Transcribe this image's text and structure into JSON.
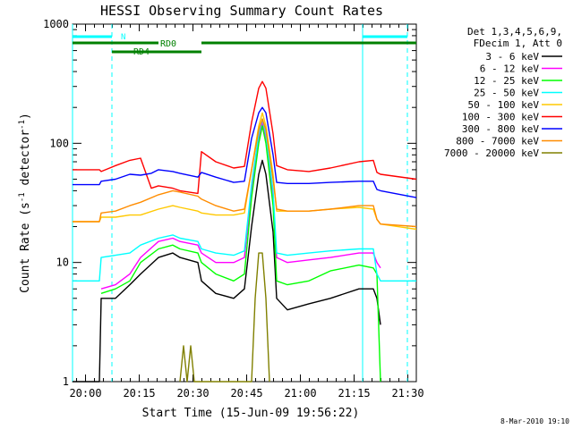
{
  "chart_data": {
    "type": "line",
    "title": "HESSI Observing Summary Count Rates",
    "xlabel": "Start Time (15-Jun-09 19:56:22)",
    "ylabel_main": "Count Rate (s",
    "ylabel_sup1": "-1",
    "ylabel_mid": " detector",
    "ylabel_sup2": "-1",
    "ylabel_end": ")",
    "x_range_minutes": [
      0,
      96
    ],
    "x_ticks": [
      {
        "m": 3.63,
        "label": "20:00"
      },
      {
        "m": 18.63,
        "label": "20:15"
      },
      {
        "m": 33.63,
        "label": "20:30"
      },
      {
        "m": 48.63,
        "label": "20:45"
      },
      {
        "m": 63.63,
        "label": "21:00"
      },
      {
        "m": 78.63,
        "label": "21:15"
      },
      {
        "m": 93.63,
        "label": "21:30"
      }
    ],
    "y_scale": "log",
    "y_range": [
      1,
      1000
    ],
    "y_ticks": [
      {
        "v": 1,
        "label": "1"
      },
      {
        "v": 10,
        "label": "10"
      },
      {
        "v": 100,
        "label": "100"
      },
      {
        "v": 1000,
        "label": "1000"
      }
    ],
    "legend_header": [
      "Det 1,3,4,5,6,9,",
      "FDecim 1, Att 0"
    ],
    "legend_placement": "right",
    "series": [
      {
        "name": "3 - 6 keV",
        "color": "#000000",
        "values": [
          [
            0,
            1
          ],
          [
            7.5,
            1
          ],
          [
            8,
            5
          ],
          [
            12,
            5
          ],
          [
            16,
            6.5
          ],
          [
            19,
            8
          ],
          [
            24,
            11
          ],
          [
            28,
            12
          ],
          [
            30,
            11
          ],
          [
            35,
            10
          ],
          [
            36,
            7
          ],
          [
            40,
            5.5
          ],
          [
            45,
            5
          ],
          [
            48,
            6
          ],
          [
            50,
            20
          ],
          [
            52,
            55
          ],
          [
            53,
            72
          ],
          [
            54,
            55
          ],
          [
            56,
            18
          ],
          [
            57,
            5
          ],
          [
            60,
            4
          ],
          [
            66,
            4.5
          ],
          [
            72,
            5
          ],
          [
            80,
            6
          ],
          [
            84,
            6
          ],
          [
            85,
            5
          ],
          [
            86,
            3
          ]
        ]
      },
      {
        "name": "6 - 12 keV",
        "color": "#ff00ff",
        "values": [
          [
            8,
            6
          ],
          [
            12,
            6.5
          ],
          [
            16,
            8
          ],
          [
            19,
            11
          ],
          [
            24,
            15
          ],
          [
            28,
            16
          ],
          [
            30,
            15
          ],
          [
            35,
            14
          ],
          [
            36,
            12
          ],
          [
            40,
            10
          ],
          [
            45,
            10
          ],
          [
            48,
            11
          ],
          [
            50,
            40
          ],
          [
            52,
            110
          ],
          [
            53,
            150
          ],
          [
            54,
            110
          ],
          [
            56,
            35
          ],
          [
            57,
            11
          ],
          [
            60,
            10
          ],
          [
            66,
            10.5
          ],
          [
            72,
            11
          ],
          [
            80,
            12
          ],
          [
            84,
            12
          ],
          [
            85,
            10
          ],
          [
            86,
            9
          ]
        ]
      },
      {
        "name": "12 - 25 keV",
        "color": "#00ff00",
        "values": [
          [
            8,
            5.5
          ],
          [
            12,
            6
          ],
          [
            16,
            7
          ],
          [
            19,
            10
          ],
          [
            24,
            13
          ],
          [
            28,
            14
          ],
          [
            30,
            13
          ],
          [
            35,
            12
          ],
          [
            36,
            10
          ],
          [
            40,
            8
          ],
          [
            45,
            7
          ],
          [
            48,
            8
          ],
          [
            50,
            35
          ],
          [
            52,
            100
          ],
          [
            53,
            140
          ],
          [
            54,
            100
          ],
          [
            56,
            30
          ],
          [
            57,
            7
          ],
          [
            60,
            6.5
          ],
          [
            66,
            7
          ],
          [
            72,
            8.5
          ],
          [
            80,
            9.5
          ],
          [
            84,
            9
          ],
          [
            85,
            8
          ],
          [
            86,
            1
          ]
        ]
      },
      {
        "name": "25 - 50 keV",
        "color": "#00ffff",
        "values": [
          [
            0,
            7
          ],
          [
            7.5,
            7
          ],
          [
            8,
            11
          ],
          [
            12,
            11.5
          ],
          [
            16,
            12
          ],
          [
            19,
            14
          ],
          [
            24,
            16
          ],
          [
            28,
            17
          ],
          [
            30,
            16
          ],
          [
            35,
            15
          ],
          [
            36,
            13
          ],
          [
            40,
            12
          ],
          [
            45,
            11.5
          ],
          [
            48,
            12.5
          ],
          [
            50,
            45
          ],
          [
            52,
            120
          ],
          [
            53,
            160
          ],
          [
            54,
            120
          ],
          [
            56,
            40
          ],
          [
            57,
            12
          ],
          [
            60,
            11.5
          ],
          [
            66,
            12
          ],
          [
            72,
            12.5
          ],
          [
            80,
            13
          ],
          [
            84,
            13
          ],
          [
            85,
            8
          ],
          [
            86,
            7
          ],
          [
            96,
            7
          ]
        ]
      },
      {
        "name": "50 - 100 keV",
        "color": "#ffc800",
        "values": [
          [
            0,
            22
          ],
          [
            7.5,
            22
          ],
          [
            8,
            24
          ],
          [
            12,
            24
          ],
          [
            16,
            25
          ],
          [
            19,
            25
          ],
          [
            24,
            28
          ],
          [
            28,
            30
          ],
          [
            30,
            29
          ],
          [
            35,
            27
          ],
          [
            36,
            26
          ],
          [
            40,
            25
          ],
          [
            45,
            25
          ],
          [
            48,
            26
          ],
          [
            50,
            60
          ],
          [
            52,
            140
          ],
          [
            53,
            180
          ],
          [
            54,
            140
          ],
          [
            56,
            55
          ],
          [
            57,
            27
          ],
          [
            60,
            27
          ],
          [
            66,
            27
          ],
          [
            72,
            28
          ],
          [
            80,
            29
          ],
          [
            84,
            28
          ],
          [
            85,
            23
          ],
          [
            86,
            21
          ],
          [
            96,
            19
          ]
        ]
      },
      {
        "name": "100 - 300 keV",
        "color": "#ff0000",
        "values": [
          [
            0,
            60
          ],
          [
            7.5,
            60
          ],
          [
            8,
            58
          ],
          [
            12,
            65
          ],
          [
            16,
            72
          ],
          [
            19,
            75
          ],
          [
            22,
            42
          ],
          [
            24,
            44
          ],
          [
            28,
            42
          ],
          [
            30,
            40
          ],
          [
            35,
            38
          ],
          [
            36,
            85
          ],
          [
            40,
            70
          ],
          [
            45,
            62
          ],
          [
            48,
            64
          ],
          [
            50,
            150
          ],
          [
            52,
            290
          ],
          [
            53,
            330
          ],
          [
            54,
            290
          ],
          [
            56,
            120
          ],
          [
            57,
            65
          ],
          [
            60,
            60
          ],
          [
            66,
            58
          ],
          [
            72,
            62
          ],
          [
            80,
            70
          ],
          [
            84,
            72
          ],
          [
            85,
            57
          ],
          [
            86,
            55
          ],
          [
            96,
            50
          ]
        ]
      },
      {
        "name": "300 - 800 keV",
        "color": "#0000ff",
        "values": [
          [
            0,
            45
          ],
          [
            7.5,
            45
          ],
          [
            8,
            48
          ],
          [
            12,
            50
          ],
          [
            16,
            55
          ],
          [
            19,
            54
          ],
          [
            22,
            56
          ],
          [
            24,
            60
          ],
          [
            28,
            58
          ],
          [
            30,
            56
          ],
          [
            35,
            52
          ],
          [
            36,
            57
          ],
          [
            40,
            52
          ],
          [
            45,
            47
          ],
          [
            48,
            48
          ],
          [
            50,
            110
          ],
          [
            52,
            180
          ],
          [
            53,
            200
          ],
          [
            54,
            180
          ],
          [
            56,
            80
          ],
          [
            57,
            47
          ],
          [
            60,
            46
          ],
          [
            66,
            46
          ],
          [
            72,
            47
          ],
          [
            80,
            48
          ],
          [
            84,
            48
          ],
          [
            85,
            41
          ],
          [
            86,
            40
          ],
          [
            96,
            35
          ]
        ]
      },
      {
        "name": "800 - 7000 keV",
        "color": "#ff8c00",
        "values": [
          [
            0,
            22
          ],
          [
            7.5,
            22
          ],
          [
            8,
            26
          ],
          [
            12,
            27
          ],
          [
            16,
            30
          ],
          [
            19,
            32
          ],
          [
            24,
            37
          ],
          [
            28,
            40
          ],
          [
            30,
            39
          ],
          [
            35,
            36
          ],
          [
            36,
            34
          ],
          [
            40,
            30
          ],
          [
            45,
            27
          ],
          [
            48,
            28
          ],
          [
            50,
            60
          ],
          [
            52,
            130
          ],
          [
            53,
            160
          ],
          [
            54,
            130
          ],
          [
            56,
            50
          ],
          [
            57,
            28
          ],
          [
            60,
            27
          ],
          [
            66,
            27
          ],
          [
            72,
            28
          ],
          [
            80,
            30
          ],
          [
            84,
            30
          ],
          [
            85,
            23
          ],
          [
            86,
            21
          ],
          [
            96,
            20
          ]
        ]
      },
      {
        "name": "7000 - 20000 keV",
        "color": "#808000",
        "values": [
          [
            30,
            1
          ],
          [
            31,
            2
          ],
          [
            32,
            1
          ],
          [
            33,
            2
          ],
          [
            34,
            1
          ],
          [
            50,
            1
          ],
          [
            51,
            5
          ],
          [
            52,
            12
          ],
          [
            53,
            12
          ],
          [
            54,
            5
          ],
          [
            55,
            1
          ]
        ]
      }
    ],
    "annotations": {
      "night_label": "N",
      "rd0_label": "RD0",
      "rd4_label": "RD4"
    },
    "footer_date": "8-Mar-2010 19:10"
  }
}
